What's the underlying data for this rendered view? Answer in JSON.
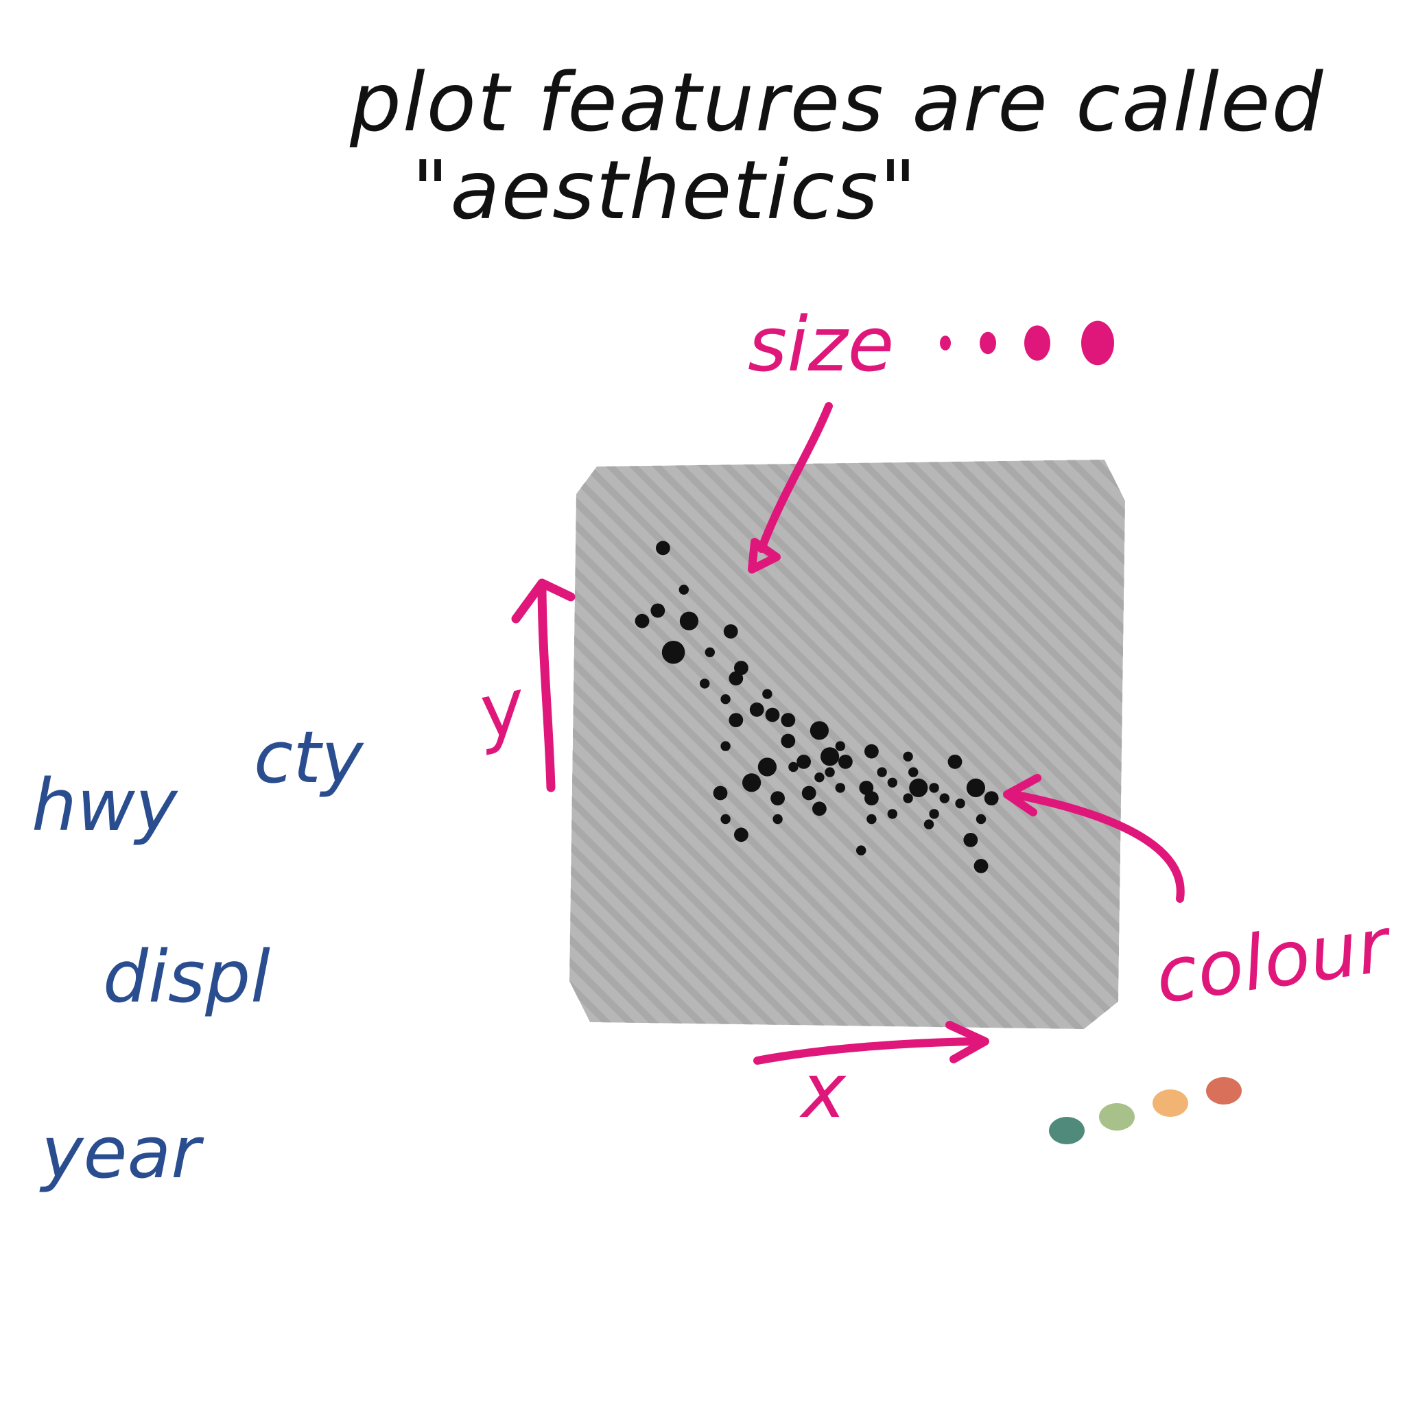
{
  "title": {
    "line1": "plot features are called",
    "line2": "\"aesthetics\""
  },
  "labels": {
    "size": "size",
    "y": "y",
    "x": "x",
    "colour": "colour"
  },
  "variables": [
    "hwy",
    "cty",
    "displ",
    "year"
  ],
  "colors": {
    "ink": "#111111",
    "accent": "#E0177A",
    "variable": "#2A4D8F",
    "panel": "#B7B7B7",
    "palette": [
      "#4F8A7A",
      "#A8C08A",
      "#F2B472",
      "#D9705A"
    ]
  },
  "size_legend": {
    "steps": 4
  },
  "colour_legend": {
    "steps": 4
  },
  "scatter": {
    "points": [
      [
        0.14,
        0.13,
        2
      ],
      [
        0.18,
        0.21,
        1
      ],
      [
        0.13,
        0.25,
        2
      ],
      [
        0.1,
        0.27,
        2
      ],
      [
        0.19,
        0.27,
        3
      ],
      [
        0.27,
        0.29,
        2
      ],
      [
        0.16,
        0.33,
        4
      ],
      [
        0.23,
        0.33,
        1
      ],
      [
        0.29,
        0.36,
        2
      ],
      [
        0.28,
        0.38,
        2
      ],
      [
        0.22,
        0.39,
        1
      ],
      [
        0.34,
        0.41,
        1
      ],
      [
        0.26,
        0.42,
        1
      ],
      [
        0.32,
        0.44,
        2
      ],
      [
        0.35,
        0.45,
        2
      ],
      [
        0.28,
        0.46,
        2
      ],
      [
        0.38,
        0.46,
        2
      ],
      [
        0.44,
        0.48,
        3
      ],
      [
        0.38,
        0.5,
        2
      ],
      [
        0.26,
        0.51,
        1
      ],
      [
        0.48,
        0.51,
        1
      ],
      [
        0.54,
        0.52,
        2
      ],
      [
        0.46,
        0.53,
        3
      ],
      [
        0.61,
        0.53,
        1
      ],
      [
        0.41,
        0.54,
        2
      ],
      [
        0.49,
        0.54,
        2
      ],
      [
        0.7,
        0.54,
        2
      ],
      [
        0.34,
        0.55,
        3
      ],
      [
        0.39,
        0.55,
        1
      ],
      [
        0.46,
        0.56,
        1
      ],
      [
        0.56,
        0.56,
        1
      ],
      [
        0.62,
        0.56,
        1
      ],
      [
        0.44,
        0.57,
        1
      ],
      [
        0.31,
        0.58,
        3
      ],
      [
        0.53,
        0.59,
        2
      ],
      [
        0.63,
        0.59,
        3
      ],
      [
        0.58,
        0.58,
        1
      ],
      [
        0.48,
        0.59,
        1
      ],
      [
        0.66,
        0.59,
        1
      ],
      [
        0.74,
        0.59,
        3
      ],
      [
        0.25,
        0.6,
        2
      ],
      [
        0.36,
        0.61,
        2
      ],
      [
        0.42,
        0.6,
        2
      ],
      [
        0.61,
        0.61,
        1
      ],
      [
        0.68,
        0.61,
        1
      ],
      [
        0.54,
        0.61,
        2
      ],
      [
        0.77,
        0.61,
        2
      ],
      [
        0.71,
        0.62,
        1
      ],
      [
        0.44,
        0.63,
        2
      ],
      [
        0.58,
        0.64,
        1
      ],
      [
        0.66,
        0.64,
        1
      ],
      [
        0.26,
        0.65,
        1
      ],
      [
        0.36,
        0.65,
        1
      ],
      [
        0.54,
        0.65,
        1
      ],
      [
        0.75,
        0.65,
        1
      ],
      [
        0.65,
        0.66,
        1
      ],
      [
        0.29,
        0.68,
        2
      ],
      [
        0.73,
        0.69,
        2
      ],
      [
        0.52,
        0.71,
        1
      ],
      [
        0.75,
        0.74,
        2
      ]
    ]
  }
}
